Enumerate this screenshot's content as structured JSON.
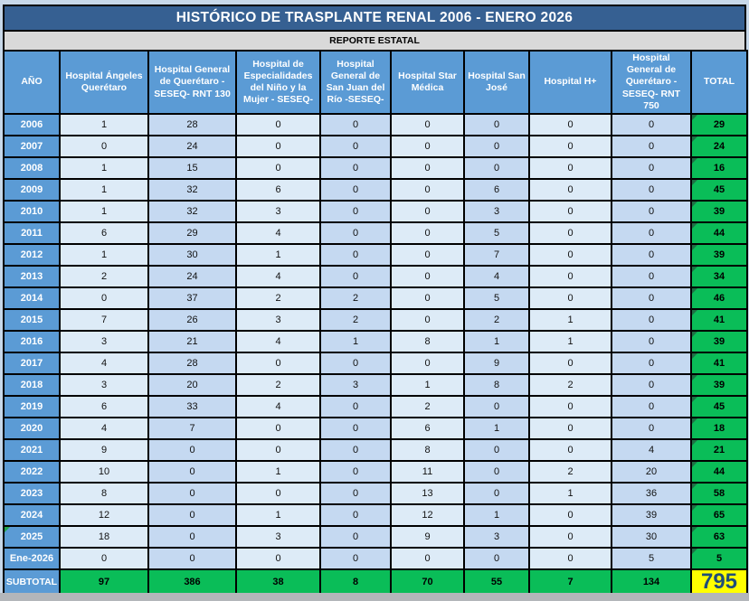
{
  "title": "HISTÓRICO DE TRASPLANTE RENAL 2006 - ENERO 2026",
  "subtitle": "REPORTE ESTATAL",
  "columns": {
    "year": "AÑO",
    "hospitals": [
      "Hospital Ángeles Querétaro",
      "Hospital General de Querétaro - SESEQ- RNT 130",
      "Hospital de Especialidades del Niño y la Mujer - SESEQ-",
      "Hospital General de San Juan del Río -SESEQ-",
      "Hospital Star Médica",
      "Hospital San José",
      "Hospital H+",
      "Hospital General de Querétaro - SESEQ- RNT 750"
    ],
    "total": "TOTAL"
  },
  "rows": [
    {
      "year": "2006",
      "values": [
        1,
        28,
        0,
        0,
        0,
        0,
        0,
        0
      ],
      "total": 29,
      "flagged": false
    },
    {
      "year": "2007",
      "values": [
        0,
        24,
        0,
        0,
        0,
        0,
        0,
        0
      ],
      "total": 24,
      "flagged": false
    },
    {
      "year": "2008",
      "values": [
        1,
        15,
        0,
        0,
        0,
        0,
        0,
        0
      ],
      "total": 16,
      "flagged": false
    },
    {
      "year": "2009",
      "values": [
        1,
        32,
        6,
        0,
        0,
        6,
        0,
        0
      ],
      "total": 45,
      "flagged": false
    },
    {
      "year": "2010",
      "values": [
        1,
        32,
        3,
        0,
        0,
        3,
        0,
        0
      ],
      "total": 39,
      "flagged": false
    },
    {
      "year": "2011",
      "values": [
        6,
        29,
        4,
        0,
        0,
        5,
        0,
        0
      ],
      "total": 44,
      "flagged": false
    },
    {
      "year": "2012",
      "values": [
        1,
        30,
        1,
        0,
        0,
        7,
        0,
        0
      ],
      "total": 39,
      "flagged": false
    },
    {
      "year": "2013",
      "values": [
        2,
        24,
        4,
        0,
        0,
        4,
        0,
        0
      ],
      "total": 34,
      "flagged": false
    },
    {
      "year": "2014",
      "values": [
        0,
        37,
        2,
        2,
        0,
        5,
        0,
        0
      ],
      "total": 46,
      "flagged": false
    },
    {
      "year": "2015",
      "values": [
        7,
        26,
        3,
        2,
        0,
        2,
        1,
        0
      ],
      "total": 41,
      "flagged": false
    },
    {
      "year": "2016",
      "values": [
        3,
        21,
        4,
        1,
        8,
        1,
        1,
        0
      ],
      "total": 39,
      "flagged": false
    },
    {
      "year": "2017",
      "values": [
        4,
        28,
        0,
        0,
        0,
        9,
        0,
        0
      ],
      "total": 41,
      "flagged": false
    },
    {
      "year": "2018",
      "values": [
        3,
        20,
        2,
        3,
        1,
        8,
        2,
        0
      ],
      "total": 39,
      "flagged": false
    },
    {
      "year": "2019",
      "values": [
        6,
        33,
        4,
        0,
        2,
        0,
        0,
        0
      ],
      "total": 45,
      "flagged": false
    },
    {
      "year": "2020",
      "values": [
        4,
        7,
        0,
        0,
        6,
        1,
        0,
        0
      ],
      "total": 18,
      "flagged": false
    },
    {
      "year": "2021",
      "values": [
        9,
        0,
        0,
        0,
        8,
        0,
        0,
        4
      ],
      "total": 21,
      "flagged": false
    },
    {
      "year": "2022",
      "values": [
        10,
        0,
        1,
        0,
        11,
        0,
        2,
        20
      ],
      "total": 44,
      "flagged": false
    },
    {
      "year": "2023",
      "values": [
        8,
        0,
        0,
        0,
        13,
        0,
        1,
        36
      ],
      "total": 58,
      "flagged": false
    },
    {
      "year": "2024",
      "values": [
        12,
        0,
        1,
        0,
        12,
        1,
        0,
        39
      ],
      "total": 65,
      "flagged": false
    },
    {
      "year": "2025",
      "values": [
        18,
        0,
        3,
        0,
        9,
        3,
        0,
        30
      ],
      "total": 63,
      "flagged": true
    },
    {
      "year": "Ene-2026",
      "values": [
        0,
        0,
        0,
        0,
        0,
        0,
        0,
        5
      ],
      "total": 5,
      "flagged": false
    }
  ],
  "subtotal": {
    "label": "SUBTOTAL",
    "values": [
      97,
      386,
      38,
      8,
      70,
      55,
      7,
      134
    ],
    "grand_total": 795
  },
  "colors": {
    "title_bg": "#366092",
    "subtitle_bg": "#d9d9d9",
    "header_bg": "#5b9bd5",
    "col_light": "#ddebf7",
    "col_dark": "#c5d9f1",
    "green": "#0abd58",
    "yellow": "#ffff00",
    "grand_total_text": "#1f4e79",
    "triangle_dark_green": "#1e7145",
    "triangle_bright_green": "#22a54b"
  }
}
